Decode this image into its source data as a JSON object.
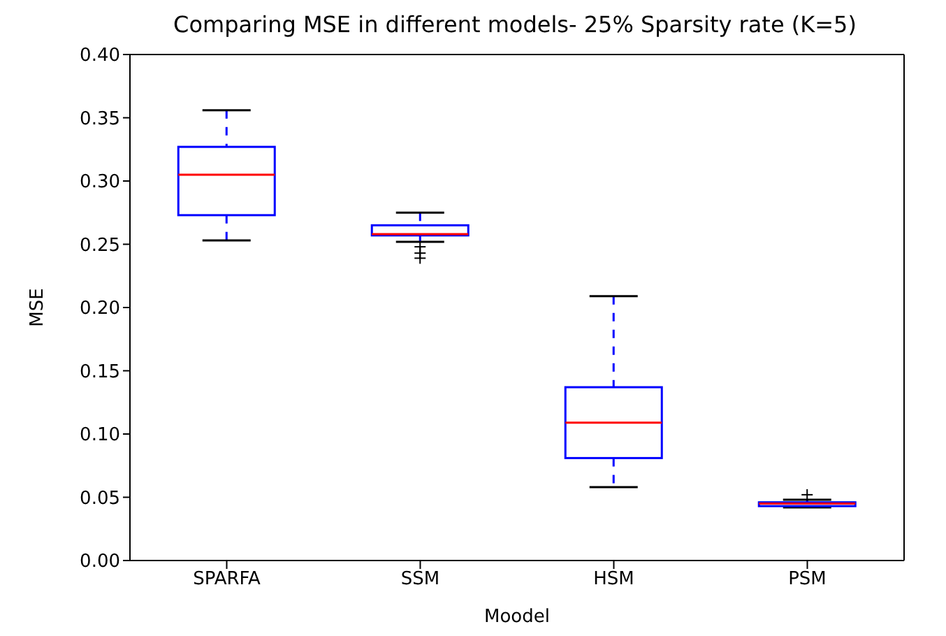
{
  "chart_data": {
    "type": "box",
    "title": "Comparing MSE in different models- 25% Sparsity rate (K=5)",
    "xlabel": "Moodel",
    "ylabel": "MSE",
    "categories": [
      "SPARFA",
      "SSM",
      "HSM",
      "PSM"
    ],
    "boxes": [
      {
        "low": 0.253,
        "q1": 0.273,
        "median": 0.305,
        "q3": 0.327,
        "high": 0.356
      },
      {
        "low": 0.252,
        "q1": 0.257,
        "median": 0.258,
        "q3": 0.265,
        "high": 0.275,
        "outliers": [
          0.248,
          0.243,
          0.239
        ]
      },
      {
        "low": 0.058,
        "q1": 0.081,
        "median": 0.109,
        "q3": 0.137,
        "high": 0.209
      },
      {
        "low": 0.042,
        "q1": 0.043,
        "median": 0.045,
        "q3": 0.046,
        "high": 0.048,
        "outliers": [
          0.052
        ]
      }
    ],
    "color": "#0000ff",
    "ylim": [
      0,
      0.4
    ],
    "yticks": [
      {
        "value": 0,
        "label": "0.00"
      },
      {
        "value": 0.05,
        "label": "0.05"
      },
      {
        "value": 0.1,
        "label": "0.10"
      },
      {
        "value": 0.15,
        "label": "0.15"
      },
      {
        "value": 0.2,
        "label": "0.20"
      },
      {
        "value": 0.25,
        "label": "0.25"
      },
      {
        "value": 0.3,
        "label": "0.30"
      },
      {
        "value": 0.35,
        "label": "0.35"
      },
      {
        "value": 0.4,
        "label": "0.40"
      }
    ],
    "grid": false,
    "legend": false
  }
}
